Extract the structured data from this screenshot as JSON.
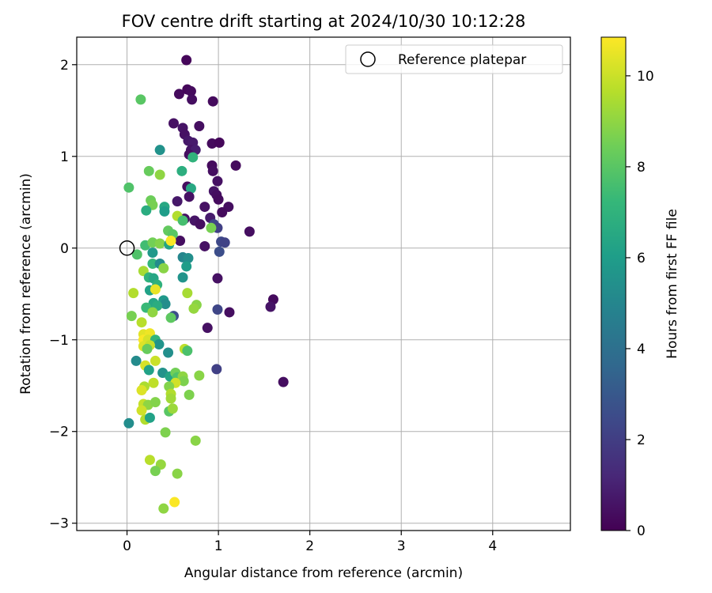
{
  "chart_data": {
    "type": "scatter",
    "title": "FOV centre drift starting at 2024/10/30 10:12:28",
    "xlabel": "Angular distance from reference (arcmin)",
    "ylabel": "Rotation from reference (arcmin)",
    "xlim": [
      -0.55,
      4.85
    ],
    "ylim": [
      -3.08,
      2.3
    ],
    "xticks": [
      0,
      1,
      2,
      3,
      4
    ],
    "yticks": [
      -3,
      -2,
      -1,
      0,
      1,
      2
    ],
    "xtick_labels": [
      "0",
      "1",
      "2",
      "3",
      "4"
    ],
    "ytick_labels": [
      "−3",
      "−2",
      "−1",
      "0",
      "1",
      "2"
    ],
    "grid": true,
    "legend": {
      "position": "top-right",
      "entries": [
        "Reference platepar"
      ]
    },
    "reference_point": {
      "label": "Reference platepar",
      "x": 0,
      "y": 0
    },
    "colorbar": {
      "label": "Hours from first FF file",
      "colormap": "viridis",
      "range": [
        0,
        10.85
      ],
      "ticks": [
        0,
        2,
        4,
        6,
        8,
        10
      ],
      "tick_labels": [
        "0",
        "2",
        "4",
        "6",
        "8",
        "10"
      ]
    },
    "colormap_stops": [
      "#440154",
      "#482878",
      "#3e4989",
      "#31688e",
      "#26828e",
      "#1f9e89",
      "#35b779",
      "#6ece58",
      "#b5de2b",
      "#fde725"
    ],
    "points": [
      {
        "x": 0.65,
        "y": 2.05,
        "t": 0.2
      },
      {
        "x": 0.57,
        "y": 1.68,
        "t": 0.3
      },
      {
        "x": 0.66,
        "y": 1.73,
        "t": 0.2
      },
      {
        "x": 0.7,
        "y": 1.71,
        "t": 0.3
      },
      {
        "x": 0.71,
        "y": 1.62,
        "t": 0.4
      },
      {
        "x": 0.94,
        "y": 1.6,
        "t": 0.3
      },
      {
        "x": 0.51,
        "y": 1.36,
        "t": 0.5
      },
      {
        "x": 0.61,
        "y": 1.31,
        "t": 0.6
      },
      {
        "x": 0.79,
        "y": 1.33,
        "t": 0.4
      },
      {
        "x": 0.63,
        "y": 1.24,
        "t": 0.5
      },
      {
        "x": 0.67,
        "y": 1.17,
        "t": 0.7
      },
      {
        "x": 0.72,
        "y": 1.15,
        "t": 0.8
      },
      {
        "x": 0.93,
        "y": 1.14,
        "t": 0.3
      },
      {
        "x": 1.01,
        "y": 1.15,
        "t": 0.2
      },
      {
        "x": 0.7,
        "y": 1.07,
        "t": 0.6
      },
      {
        "x": 0.75,
        "y": 1.07,
        "t": 0.9
      },
      {
        "x": 0.68,
        "y": 1.02,
        "t": 0.4
      },
      {
        "x": 0.72,
        "y": 0.99,
        "t": 7.0
      },
      {
        "x": 0.93,
        "y": 0.9,
        "t": 0.3
      },
      {
        "x": 0.94,
        "y": 0.84,
        "t": 0.4
      },
      {
        "x": 1.19,
        "y": 0.9,
        "t": 0.3
      },
      {
        "x": 0.99,
        "y": 0.73,
        "t": 0.5
      },
      {
        "x": 0.66,
        "y": 0.67,
        "t": 0.4
      },
      {
        "x": 0.7,
        "y": 0.65,
        "t": 6.5
      },
      {
        "x": 0.95,
        "y": 0.62,
        "t": 0.6
      },
      {
        "x": 0.98,
        "y": 0.58,
        "t": 0.4
      },
      {
        "x": 0.68,
        "y": 0.56,
        "t": 0.5
      },
      {
        "x": 1.0,
        "y": 0.53,
        "t": 0.3
      },
      {
        "x": 0.55,
        "y": 0.51,
        "t": 0.7
      },
      {
        "x": 0.85,
        "y": 0.45,
        "t": 0.5
      },
      {
        "x": 1.11,
        "y": 0.45,
        "t": 0.4
      },
      {
        "x": 1.04,
        "y": 0.39,
        "t": 0.3
      },
      {
        "x": 0.91,
        "y": 0.33,
        "t": 0.8
      },
      {
        "x": 0.63,
        "y": 0.32,
        "t": 0.5
      },
      {
        "x": 0.74,
        "y": 0.3,
        "t": 0.6
      },
      {
        "x": 0.8,
        "y": 0.26,
        "t": 0.4
      },
      {
        "x": 0.95,
        "y": 0.26,
        "t": 2.3
      },
      {
        "x": 0.99,
        "y": 0.22,
        "t": 2.1
      },
      {
        "x": 1.34,
        "y": 0.18,
        "t": 0.4
      },
      {
        "x": 0.58,
        "y": 0.08,
        "t": 0.4
      },
      {
        "x": 0.85,
        "y": 0.02,
        "t": 0.5
      },
      {
        "x": 1.03,
        "y": 0.07,
        "t": 2.4
      },
      {
        "x": 1.07,
        "y": 0.06,
        "t": 2.2
      },
      {
        "x": 1.01,
        "y": -0.04,
        "t": 2.6
      },
      {
        "x": 0.99,
        "y": -0.33,
        "t": 0.5
      },
      {
        "x": 1.6,
        "y": -0.56,
        "t": 0.3
      },
      {
        "x": 1.57,
        "y": -0.64,
        "t": 0.6
      },
      {
        "x": 0.99,
        "y": -0.67,
        "t": 2.3
      },
      {
        "x": 1.12,
        "y": -0.7,
        "t": 0.4
      },
      {
        "x": 0.88,
        "y": -0.87,
        "t": 0.5
      },
      {
        "x": 0.98,
        "y": -1.32,
        "t": 2.1
      },
      {
        "x": 1.71,
        "y": -1.46,
        "t": 0.4
      },
      {
        "x": 0.15,
        "y": 1.62,
        "t": 8.0
      },
      {
        "x": 0.36,
        "y": 1.07,
        "t": 5.5
      },
      {
        "x": 0.24,
        "y": 0.84,
        "t": 8.3
      },
      {
        "x": 0.36,
        "y": 0.8,
        "t": 9.0
      },
      {
        "x": 0.6,
        "y": 0.84,
        "t": 6.8
      },
      {
        "x": 0.02,
        "y": 0.66,
        "t": 7.8
      },
      {
        "x": 0.26,
        "y": 0.52,
        "t": 8.4
      },
      {
        "x": 0.28,
        "y": 0.47,
        "t": 8.6
      },
      {
        "x": 0.21,
        "y": 0.41,
        "t": 6.7
      },
      {
        "x": 0.41,
        "y": 0.45,
        "t": 6.5
      },
      {
        "x": 0.41,
        "y": 0.4,
        "t": 6.0
      },
      {
        "x": 0.55,
        "y": 0.35,
        "t": 9.6
      },
      {
        "x": 0.61,
        "y": 0.3,
        "t": 7.6
      },
      {
        "x": 0.45,
        "y": 0.19,
        "t": 8.2
      },
      {
        "x": 0.5,
        "y": 0.15,
        "t": 8.0
      },
      {
        "x": 0.92,
        "y": 0.22,
        "t": 8.6
      },
      {
        "x": 0.2,
        "y": 0.03,
        "t": 7.5
      },
      {
        "x": 0.28,
        "y": 0.06,
        "t": 8.5
      },
      {
        "x": 0.36,
        "y": 0.05,
        "t": 8.8
      },
      {
        "x": 0.46,
        "y": 0.04,
        "t": 6.3
      },
      {
        "x": 0.48,
        "y": 0.08,
        "t": 10.8
      },
      {
        "x": 0.11,
        "y": -0.07,
        "t": 7.8
      },
      {
        "x": 0.28,
        "y": -0.05,
        "t": 5.8
      },
      {
        "x": 0.61,
        "y": -0.1,
        "t": 5.0
      },
      {
        "x": 0.67,
        "y": -0.11,
        "t": 5.4
      },
      {
        "x": 0.28,
        "y": -0.17,
        "t": 7.2
      },
      {
        "x": 0.36,
        "y": -0.17,
        "t": 5.2
      },
      {
        "x": 0.65,
        "y": -0.2,
        "t": 6.0
      },
      {
        "x": 0.4,
        "y": -0.22,
        "t": 8.9
      },
      {
        "x": 0.18,
        "y": -0.25,
        "t": 9.4
      },
      {
        "x": 0.24,
        "y": -0.32,
        "t": 7.0
      },
      {
        "x": 0.29,
        "y": -0.33,
        "t": 6.4
      },
      {
        "x": 0.61,
        "y": -0.32,
        "t": 5.6
      },
      {
        "x": 0.33,
        "y": -0.4,
        "t": 6.9
      },
      {
        "x": 0.25,
        "y": -0.46,
        "t": 6.2
      },
      {
        "x": 0.31,
        "y": -0.45,
        "t": 10.5
      },
      {
        "x": 0.07,
        "y": -0.49,
        "t": 9.6
      },
      {
        "x": 0.66,
        "y": -0.49,
        "t": 9.4
      },
      {
        "x": 0.4,
        "y": -0.57,
        "t": 5.8
      },
      {
        "x": 0.42,
        "y": -0.61,
        "t": 5.3
      },
      {
        "x": 0.29,
        "y": -0.6,
        "t": 6.4
      },
      {
        "x": 0.33,
        "y": -0.63,
        "t": 6.7
      },
      {
        "x": 0.21,
        "y": -0.65,
        "t": 7.3
      },
      {
        "x": 0.76,
        "y": -0.62,
        "t": 8.9
      },
      {
        "x": 0.73,
        "y": -0.66,
        "t": 9.1
      },
      {
        "x": 0.28,
        "y": -0.7,
        "t": 9.0
      },
      {
        "x": 0.05,
        "y": -0.74,
        "t": 8.6
      },
      {
        "x": 0.51,
        "y": -0.74,
        "t": 2.6
      },
      {
        "x": 0.48,
        "y": -0.76,
        "t": 8.1
      },
      {
        "x": 0.16,
        "y": -0.81,
        "t": 9.7
      },
      {
        "x": 0.18,
        "y": -0.94,
        "t": 10.4
      },
      {
        "x": 0.25,
        "y": -0.93,
        "t": 10.6
      },
      {
        "x": 0.18,
        "y": -1.0,
        "t": 10.8
      },
      {
        "x": 0.23,
        "y": -1.0,
        "t": 10.2
      },
      {
        "x": 0.31,
        "y": -1.0,
        "t": 7.1
      },
      {
        "x": 0.35,
        "y": -1.05,
        "t": 5.6
      },
      {
        "x": 0.18,
        "y": -1.07,
        "t": 10.3
      },
      {
        "x": 0.25,
        "y": -1.06,
        "t": 9.9
      },
      {
        "x": 0.22,
        "y": -1.1,
        "t": 8.3
      },
      {
        "x": 0.63,
        "y": -1.1,
        "t": 9.8
      },
      {
        "x": 0.66,
        "y": -1.12,
        "t": 7.7
      },
      {
        "x": 0.45,
        "y": -1.14,
        "t": 5.4
      },
      {
        "x": 0.1,
        "y": -1.23,
        "t": 5.2
      },
      {
        "x": 0.31,
        "y": -1.23,
        "t": 10.0
      },
      {
        "x": 0.2,
        "y": -1.28,
        "t": 10.2
      },
      {
        "x": 0.24,
        "y": -1.33,
        "t": 6.2
      },
      {
        "x": 0.39,
        "y": -1.36,
        "t": 5.5
      },
      {
        "x": 0.47,
        "y": -1.4,
        "t": 6.3
      },
      {
        "x": 0.53,
        "y": -1.36,
        "t": 8.5
      },
      {
        "x": 0.55,
        "y": -1.41,
        "t": 7.8
      },
      {
        "x": 0.61,
        "y": -1.4,
        "t": 9.0
      },
      {
        "x": 0.62,
        "y": -1.45,
        "t": 8.7
      },
      {
        "x": 0.79,
        "y": -1.39,
        "t": 8.9
      },
      {
        "x": 0.53,
        "y": -1.47,
        "t": 10.1
      },
      {
        "x": 0.29,
        "y": -1.47,
        "t": 9.8
      },
      {
        "x": 0.46,
        "y": -1.51,
        "t": 8.8
      },
      {
        "x": 0.19,
        "y": -1.51,
        "t": 9.5
      },
      {
        "x": 0.16,
        "y": -1.55,
        "t": 10.3
      },
      {
        "x": 0.48,
        "y": -1.59,
        "t": 9.6
      },
      {
        "x": 0.48,
        "y": -1.64,
        "t": 9.3
      },
      {
        "x": 0.68,
        "y": -1.6,
        "t": 8.7
      },
      {
        "x": 0.18,
        "y": -1.7,
        "t": 9.9
      },
      {
        "x": 0.23,
        "y": -1.71,
        "t": 9.0
      },
      {
        "x": 0.31,
        "y": -1.68,
        "t": 8.8
      },
      {
        "x": 0.46,
        "y": -1.78,
        "t": 8.0
      },
      {
        "x": 0.5,
        "y": -1.75,
        "t": 9.2
      },
      {
        "x": 0.16,
        "y": -1.77,
        "t": 10.1
      },
      {
        "x": 0.2,
        "y": -1.87,
        "t": 9.6
      },
      {
        "x": 0.25,
        "y": -1.85,
        "t": 6.2
      },
      {
        "x": 0.02,
        "y": -1.91,
        "t": 5.3
      },
      {
        "x": 0.42,
        "y": -2.01,
        "t": 8.7
      },
      {
        "x": 0.75,
        "y": -2.1,
        "t": 8.9
      },
      {
        "x": 0.25,
        "y": -2.31,
        "t": 9.7
      },
      {
        "x": 0.37,
        "y": -2.36,
        "t": 9.1
      },
      {
        "x": 0.31,
        "y": -2.43,
        "t": 8.6
      },
      {
        "x": 0.55,
        "y": -2.46,
        "t": 8.9
      },
      {
        "x": 0.52,
        "y": -2.77,
        "t": 10.8
      },
      {
        "x": 0.4,
        "y": -2.84,
        "t": 9.0
      }
    ]
  }
}
